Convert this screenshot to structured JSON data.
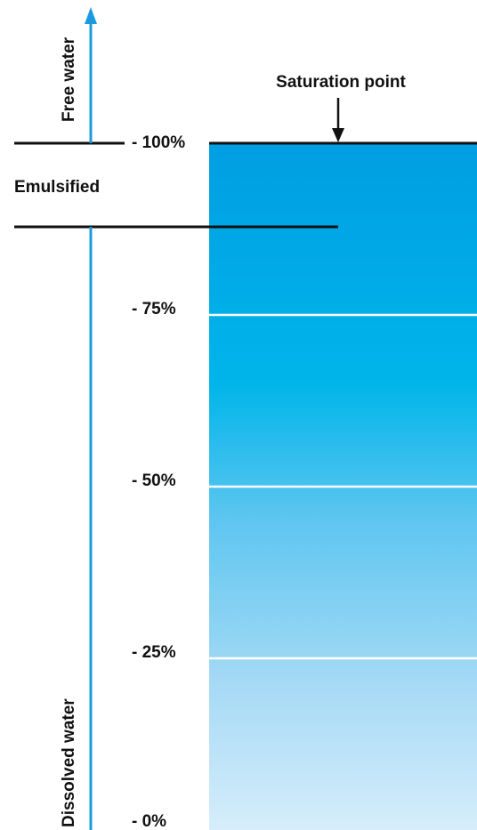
{
  "labels": {
    "free_water": "Free water",
    "emulsified": "Emulsified",
    "dissolved_water": "Dissolved water",
    "saturation_point": "Saturation point"
  },
  "scale": {
    "ticks": [
      {
        "value": 100,
        "label": "- 100%"
      },
      {
        "value": 75,
        "label": "- 75%"
      },
      {
        "value": 50,
        "label": "- 50%"
      },
      {
        "value": 25,
        "label": "- 25%"
      },
      {
        "value": 0,
        "label": "- 0%"
      }
    ]
  },
  "colors": {
    "arrow": "#1a9be0",
    "line": "#111111",
    "fill_top": "#009fe3",
    "fill_mid": "#00b4ea",
    "fill_bottom": "#d4ecfa",
    "divider": "#ffffff"
  }
}
